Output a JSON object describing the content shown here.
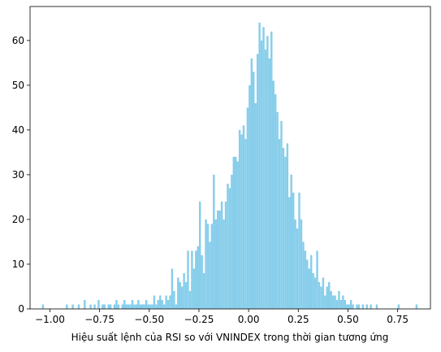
{
  "chart_data": {
    "type": "histogram",
    "xlabel": "Hiệu suất lệnh của RSI so với VNINDEX trong thời gian tương ứng",
    "color": "#87ceeb",
    "bins": [
      -1.04,
      -1.03,
      -1.02,
      -1.01,
      -1.0,
      -0.99,
      -0.98,
      -0.97,
      -0.96,
      -0.95,
      -0.94,
      -0.93,
      -0.92,
      -0.91,
      -0.9,
      -0.89,
      -0.88,
      -0.87,
      -0.86,
      -0.85,
      -0.84,
      -0.83,
      -0.82,
      -0.81,
      -0.8,
      -0.79,
      -0.78,
      -0.77,
      -0.76,
      -0.75,
      -0.74,
      -0.73,
      -0.72,
      -0.71,
      -0.7,
      -0.69,
      -0.68,
      -0.67,
      -0.66,
      -0.65,
      -0.64,
      -0.63,
      -0.62,
      -0.61,
      -0.6,
      -0.59,
      -0.58,
      -0.57,
      -0.56,
      -0.55,
      -0.54,
      -0.53,
      -0.52,
      -0.51,
      -0.5,
      -0.49,
      -0.48,
      -0.47,
      -0.46,
      -0.45,
      -0.44,
      -0.43,
      -0.42,
      -0.41,
      -0.4,
      -0.39,
      -0.38,
      -0.37,
      -0.36,
      -0.35,
      -0.34,
      -0.33,
      -0.32,
      -0.31,
      -0.3,
      -0.29,
      -0.28,
      -0.27,
      -0.26,
      -0.25,
      -0.24,
      -0.23,
      -0.22,
      -0.21,
      -0.2,
      -0.19,
      -0.18,
      -0.17,
      -0.16,
      -0.15,
      -0.14,
      -0.13,
      -0.12,
      -0.11,
      -0.1,
      -0.09,
      -0.08,
      -0.07,
      -0.06,
      -0.05,
      -0.04,
      -0.03,
      -0.02,
      -0.01,
      0.0,
      0.01,
      0.02,
      0.03,
      0.04,
      0.05,
      0.06,
      0.07,
      0.08,
      0.09,
      0.1,
      0.11,
      0.12,
      0.13,
      0.14,
      0.15,
      0.16,
      0.17,
      0.18,
      0.19,
      0.2,
      0.21,
      0.22,
      0.23,
      0.24,
      0.25,
      0.26,
      0.27,
      0.28,
      0.29,
      0.3,
      0.31,
      0.32,
      0.33,
      0.34,
      0.35,
      0.36,
      0.37,
      0.38,
      0.39,
      0.4,
      0.41,
      0.42,
      0.43,
      0.44,
      0.45,
      0.46,
      0.47,
      0.48,
      0.49,
      0.5,
      0.51,
      0.52,
      0.53,
      0.54,
      0.55,
      0.56,
      0.57,
      0.58,
      0.59,
      0.6,
      0.61,
      0.62,
      0.63,
      0.64,
      0.65,
      0.66,
      0.67,
      0.68,
      0.69,
      0.7,
      0.71,
      0.72,
      0.73,
      0.74,
      0.75,
      0.76,
      0.77,
      0.78,
      0.79,
      0.8,
      0.81,
      0.82,
      0.83,
      0.84,
      0.85
    ],
    "values": [
      1,
      0,
      0,
      0,
      0,
      0,
      0,
      0,
      0,
      0,
      0,
      0,
      1,
      0,
      0,
      1,
      0,
      0,
      1,
      0,
      0,
      2,
      0,
      0,
      1,
      0,
      1,
      0,
      2,
      0,
      1,
      1,
      0,
      1,
      1,
      0,
      1,
      2,
      1,
      0,
      1,
      2,
      1,
      1,
      1,
      2,
      1,
      1,
      2,
      1,
      1,
      1,
      2,
      1,
      1,
      1,
      3,
      1,
      2,
      3,
      2,
      1,
      3,
      2,
      3,
      9,
      4,
      1,
      7,
      6,
      5,
      8,
      6,
      13,
      4,
      13,
      9,
      13,
      14,
      24,
      12,
      8,
      20,
      19,
      15,
      19,
      30,
      20,
      22,
      22,
      24,
      20,
      24,
      28,
      27,
      30,
      34,
      34,
      33,
      40,
      39,
      41,
      38,
      45,
      50,
      56,
      53,
      46,
      57,
      64,
      60,
      63,
      58,
      61,
      56,
      62,
      51,
      48,
      44,
      38,
      42,
      36,
      34,
      37,
      25,
      30,
      26,
      20,
      18,
      26,
      20,
      15,
      13,
      11,
      9,
      12,
      8,
      7,
      13,
      6,
      5,
      7,
      3,
      5,
      6,
      4,
      3,
      3,
      2,
      4,
      2,
      3,
      2,
      1,
      1,
      2,
      1,
      0,
      1,
      1,
      0,
      1,
      0,
      1,
      0,
      1,
      0,
      0,
      1,
      0,
      0,
      0,
      0,
      0,
      0,
      0,
      0,
      0,
      0,
      1,
      0,
      0,
      0,
      0,
      0,
      0,
      0,
      0,
      1
    ],
    "xlim": [
      -1.1,
      0.915
    ],
    "xticks": [
      {
        "value": -1.0,
        "label": "−1.00"
      },
      {
        "value": -0.75,
        "label": "−0.75"
      },
      {
        "value": -0.5,
        "label": "−0.50"
      },
      {
        "value": -0.25,
        "label": "−0.25"
      },
      {
        "value": 0.0,
        "label": "0.00"
      },
      {
        "value": 0.25,
        "label": "0.25"
      },
      {
        "value": 0.5,
        "label": "0.50"
      },
      {
        "value": 0.75,
        "label": "0.75"
      }
    ],
    "ylim": [
      0,
      67.6
    ],
    "yticks": [
      0,
      10,
      20,
      30,
      40,
      50,
      60
    ]
  }
}
